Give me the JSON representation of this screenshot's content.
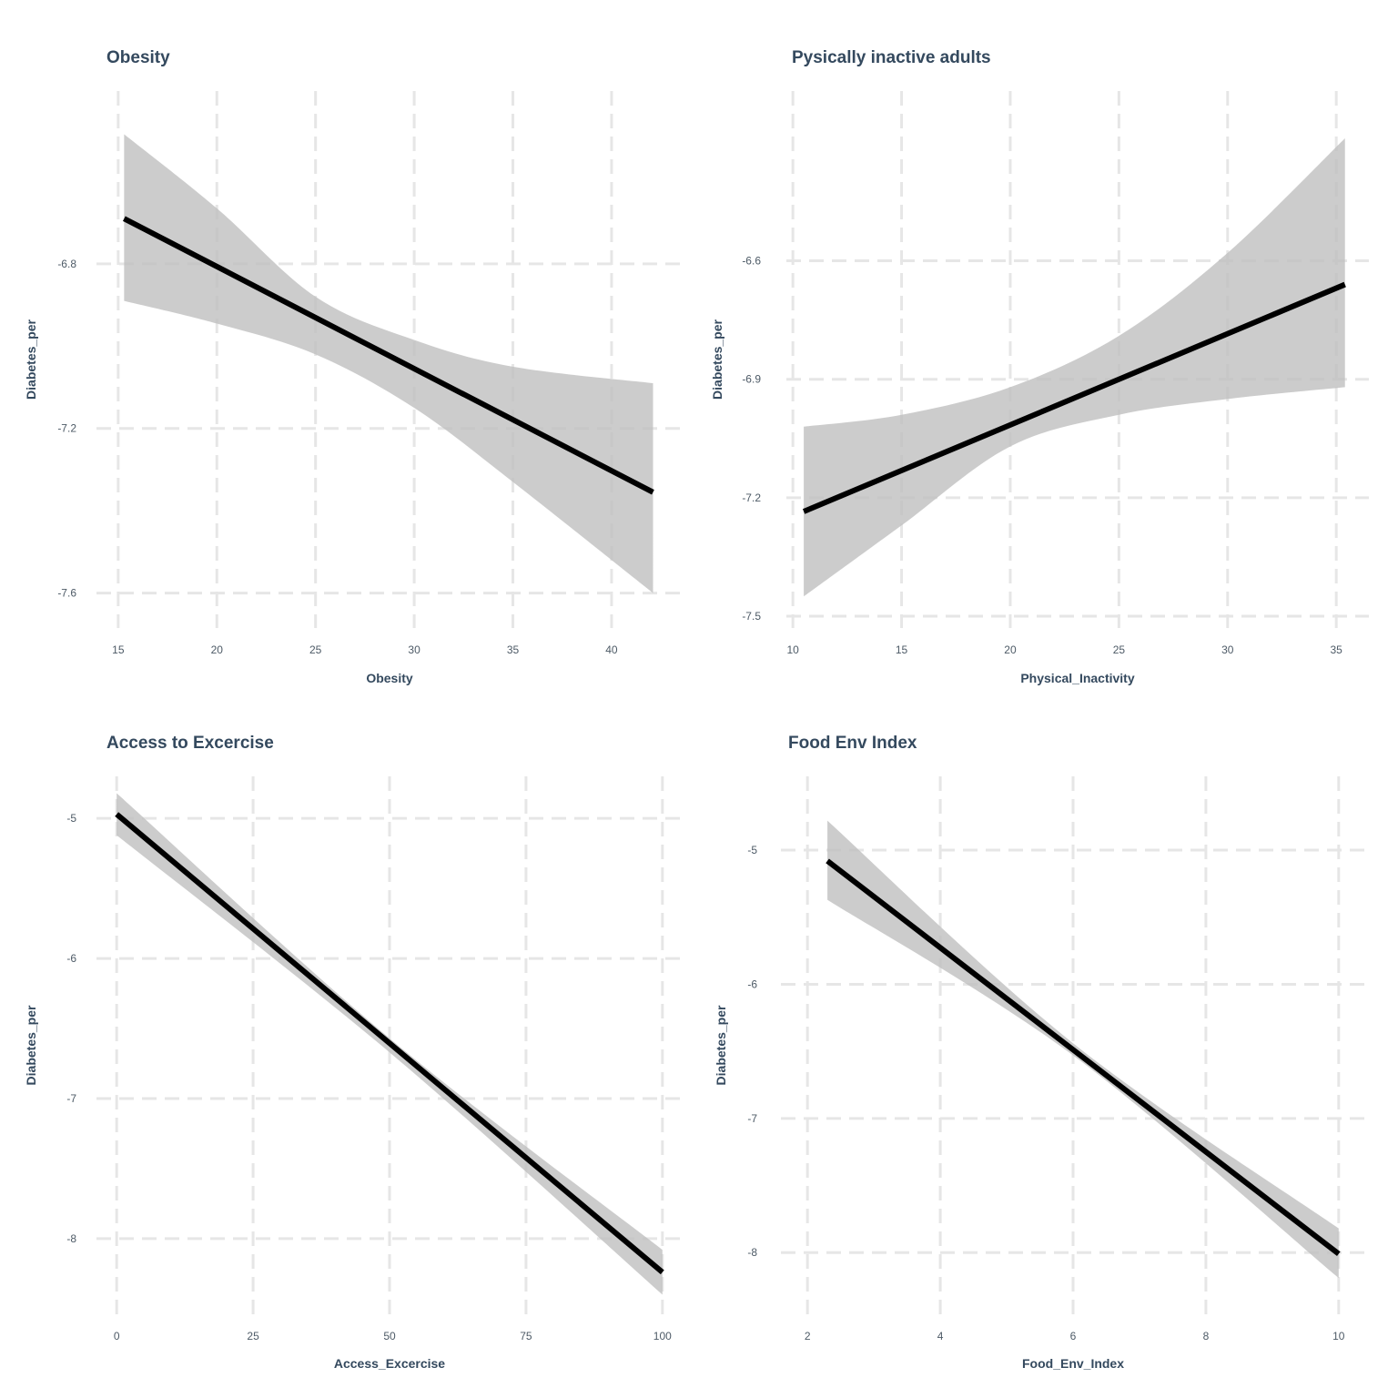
{
  "chart_data": [
    {
      "type": "line",
      "title": "Obesity",
      "xlabel": "Obesity",
      "ylabel": "Diabetes_per",
      "xlim": [
        13.9,
        43.6
      ],
      "ylim": [
        -7.685,
        -6.38
      ],
      "xticks": [
        15,
        20,
        25,
        30,
        35,
        40
      ],
      "yticks": [
        -6.8,
        -7.2,
        -7.6
      ],
      "grid": true,
      "series": [
        {
          "x": [
            15.3,
            42.1
          ],
          "y": [
            -6.69,
            -7.355
          ],
          "ci_x": [
            15.3,
            20,
            25,
            30,
            35,
            42.1
          ],
          "ci_upper": [
            -6.485,
            -6.665,
            -6.88,
            -6.985,
            -7.05,
            -7.09
          ],
          "ci_lower": [
            -6.89,
            -6.945,
            -7.02,
            -7.15,
            -7.33,
            -7.6
          ]
        }
      ]
    },
    {
      "type": "line",
      "title": "Pysically inactive adults",
      "xlabel": "Physical_Inactivity",
      "ylabel": "Diabetes_per",
      "xlim": [
        9.7,
        36.5
      ],
      "ylim": [
        -7.53,
        -6.17
      ],
      "xticks": [
        10,
        15,
        20,
        25,
        30,
        35
      ],
      "yticks": [
        -6.6,
        -6.9,
        -7.2,
        -7.5
      ],
      "grid": true,
      "series": [
        {
          "x": [
            10.5,
            35.4
          ],
          "y": [
            -7.235,
            -6.66
          ],
          "ci_x": [
            10.5,
            15,
            20,
            25,
            30,
            35.4
          ],
          "ci_upper": [
            -7.02,
            -6.99,
            -6.92,
            -6.79,
            -6.58,
            -6.29
          ],
          "ci_lower": [
            -7.45,
            -7.27,
            -7.07,
            -6.99,
            -6.95,
            -6.92
          ]
        }
      ]
    },
    {
      "type": "line",
      "title": "Access to Excercise",
      "xlabel": "Access_Excercise",
      "ylabel": "Diabetes_per",
      "xlim": [
        -3.7,
        103.7
      ],
      "ylim": [
        -8.54,
        -4.7
      ],
      "xticks": [
        0,
        25,
        50,
        75,
        100
      ],
      "yticks": [
        -5,
        -6,
        -7,
        -8
      ],
      "grid": true,
      "series": [
        {
          "x": [
            0,
            100
          ],
          "y": [
            -4.97,
            -8.24
          ],
          "ci_x": [
            0,
            50,
            100
          ],
          "ci_upper": [
            -4.82,
            -6.57,
            -8.08
          ],
          "ci_lower": [
            -5.12,
            -6.67,
            -8.4
          ]
        }
      ]
    },
    {
      "type": "line",
      "title": "Food Env Index",
      "xlabel": "Food_Env_Index",
      "ylabel": "Diabetes_per",
      "xlim": [
        1.6,
        10.4
      ],
      "ylim": [
        -8.46,
        -4.45
      ],
      "xticks": [
        2,
        4,
        6,
        8,
        10
      ],
      "yticks": [
        -5,
        -6,
        -7,
        -8
      ],
      "grid": true,
      "series": [
        {
          "x": [
            2.3,
            10
          ],
          "y": [
            -5.08,
            -8.01
          ],
          "ci_x": [
            2.3,
            6,
            10
          ],
          "ci_upper": [
            -4.78,
            -6.44,
            -7.82
          ],
          "ci_lower": [
            -5.37,
            -6.53,
            -8.19
          ]
        }
      ]
    }
  ]
}
